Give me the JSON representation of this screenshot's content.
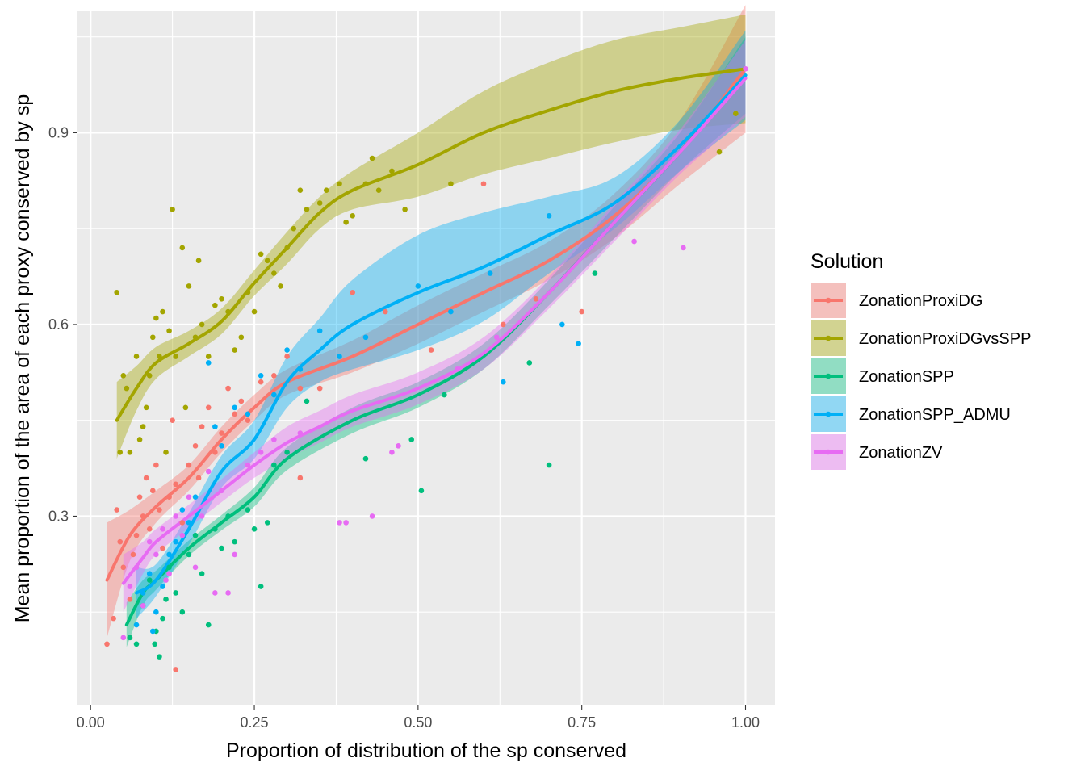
{
  "chart_data": {
    "type": "scatter",
    "title": "",
    "xlabel": "Proportion of distribution of the sp conserved",
    "ylabel": "Mean proportion of the area of each proxy conserved by sp",
    "xlim": [
      -0.02,
      1.045
    ],
    "ylim": [
      0.005,
      1.09
    ],
    "x_ticks": [
      0,
      0.25,
      0.5,
      0.75,
      1
    ],
    "x_tick_labels": [
      "0.00",
      "0.25",
      "0.50",
      "0.75",
      "1.00"
    ],
    "y_ticks": [
      0.3,
      0.6,
      0.9
    ],
    "y_tick_labels": [
      "0.3",
      "0.6",
      "0.9"
    ],
    "grid": true,
    "legend": {
      "title": "Solution",
      "position": "right"
    },
    "series": [
      {
        "name": "ZonationProxiDG",
        "color": "#F8766D",
        "smooth_x": [
          0.025,
          0.06,
          0.1,
          0.15,
          0.2,
          0.25,
          0.3,
          0.4,
          0.5,
          0.6,
          0.7,
          0.8,
          0.9,
          1.0
        ],
        "smooth_y": [
          0.2,
          0.27,
          0.315,
          0.36,
          0.42,
          0.47,
          0.51,
          0.55,
          0.6,
          0.65,
          0.7,
          0.77,
          0.87,
          1.0
        ],
        "band_half": [
          0.09,
          0.04,
          0.025,
          0.02,
          0.02,
          0.02,
          0.02,
          0.025,
          0.03,
          0.03,
          0.03,
          0.035,
          0.05,
          0.1
        ],
        "points": [
          [
            0.025,
            0.1
          ],
          [
            0.035,
            0.14
          ],
          [
            0.04,
            0.31
          ],
          [
            0.045,
            0.26
          ],
          [
            0.05,
            0.22
          ],
          [
            0.06,
            0.17
          ],
          [
            0.065,
            0.24
          ],
          [
            0.07,
            0.27
          ],
          [
            0.075,
            0.33
          ],
          [
            0.08,
            0.3
          ],
          [
            0.085,
            0.36
          ],
          [
            0.09,
            0.28
          ],
          [
            0.095,
            0.34
          ],
          [
            0.1,
            0.38
          ],
          [
            0.105,
            0.31
          ],
          [
            0.11,
            0.25
          ],
          [
            0.12,
            0.33
          ],
          [
            0.125,
            0.45
          ],
          [
            0.13,
            0.35
          ],
          [
            0.14,
            0.29
          ],
          [
            0.15,
            0.38
          ],
          [
            0.16,
            0.41
          ],
          [
            0.165,
            0.36
          ],
          [
            0.17,
            0.44
          ],
          [
            0.18,
            0.47
          ],
          [
            0.19,
            0.4
          ],
          [
            0.2,
            0.43
          ],
          [
            0.21,
            0.5
          ],
          [
            0.22,
            0.46
          ],
          [
            0.23,
            0.48
          ],
          [
            0.24,
            0.45
          ],
          [
            0.26,
            0.51
          ],
          [
            0.28,
            0.52
          ],
          [
            0.3,
            0.55
          ],
          [
            0.32,
            0.5
          ],
          [
            0.32,
            0.36
          ],
          [
            0.35,
            0.5
          ],
          [
            0.4,
            0.65
          ],
          [
            0.45,
            0.62
          ],
          [
            0.52,
            0.56
          ],
          [
            0.6,
            0.82
          ],
          [
            0.63,
            0.6
          ],
          [
            0.68,
            0.64
          ],
          [
            0.75,
            0.62
          ],
          [
            0.13,
            0.06
          ],
          [
            0.06,
            0.11
          ]
        ]
      },
      {
        "name": "ZonationProxiDGvsSPP",
        "color": "#A3A500",
        "smooth_x": [
          0.04,
          0.07,
          0.1,
          0.15,
          0.2,
          0.25,
          0.3,
          0.35,
          0.4,
          0.5,
          0.6,
          0.7,
          0.8,
          0.9,
          1.0
        ],
        "smooth_y": [
          0.45,
          0.5,
          0.54,
          0.57,
          0.605,
          0.665,
          0.72,
          0.775,
          0.81,
          0.85,
          0.9,
          0.935,
          0.965,
          0.985,
          1.0
        ],
        "band_half": [
          0.06,
          0.035,
          0.025,
          0.02,
          0.02,
          0.02,
          0.025,
          0.025,
          0.03,
          0.05,
          0.065,
          0.075,
          0.08,
          0.08,
          0.085
        ],
        "points": [
          [
            0.04,
            0.65
          ],
          [
            0.045,
            0.4
          ],
          [
            0.05,
            0.52
          ],
          [
            0.055,
            0.5
          ],
          [
            0.06,
            0.4
          ],
          [
            0.07,
            0.55
          ],
          [
            0.075,
            0.42
          ],
          [
            0.08,
            0.44
          ],
          [
            0.085,
            0.47
          ],
          [
            0.09,
            0.52
          ],
          [
            0.095,
            0.58
          ],
          [
            0.1,
            0.61
          ],
          [
            0.105,
            0.55
          ],
          [
            0.11,
            0.62
          ],
          [
            0.115,
            0.4
          ],
          [
            0.12,
            0.59
          ],
          [
            0.125,
            0.78
          ],
          [
            0.13,
            0.55
          ],
          [
            0.14,
            0.72
          ],
          [
            0.145,
            0.47
          ],
          [
            0.15,
            0.66
          ],
          [
            0.16,
            0.58
          ],
          [
            0.165,
            0.7
          ],
          [
            0.17,
            0.6
          ],
          [
            0.18,
            0.55
          ],
          [
            0.19,
            0.63
          ],
          [
            0.2,
            0.64
          ],
          [
            0.21,
            0.62
          ],
          [
            0.22,
            0.56
          ],
          [
            0.23,
            0.58
          ],
          [
            0.24,
            0.65
          ],
          [
            0.25,
            0.62
          ],
          [
            0.26,
            0.71
          ],
          [
            0.27,
            0.7
          ],
          [
            0.28,
            0.68
          ],
          [
            0.29,
            0.66
          ],
          [
            0.3,
            0.72
          ],
          [
            0.31,
            0.75
          ],
          [
            0.32,
            0.81
          ],
          [
            0.33,
            0.78
          ],
          [
            0.35,
            0.79
          ],
          [
            0.36,
            0.81
          ],
          [
            0.38,
            0.82
          ],
          [
            0.39,
            0.76
          ],
          [
            0.4,
            0.77
          ],
          [
            0.42,
            0.82
          ],
          [
            0.43,
            0.86
          ],
          [
            0.44,
            0.81
          ],
          [
            0.46,
            0.84
          ],
          [
            0.48,
            0.78
          ],
          [
            0.55,
            0.82
          ],
          [
            0.96,
            0.87
          ],
          [
            0.985,
            0.93
          ]
        ]
      },
      {
        "name": "ZonationSPP",
        "color": "#00BF7D",
        "smooth_x": [
          0.055,
          0.08,
          0.1,
          0.15,
          0.2,
          0.25,
          0.3,
          0.4,
          0.5,
          0.6,
          0.7,
          0.8,
          0.9,
          1.0
        ],
        "smooth_y": [
          0.13,
          0.18,
          0.2,
          0.25,
          0.29,
          0.33,
          0.39,
          0.45,
          0.49,
          0.55,
          0.65,
          0.76,
          0.87,
          0.99
        ],
        "band_half": [
          0.035,
          0.02,
          0.015,
          0.012,
          0.012,
          0.015,
          0.018,
          0.02,
          0.02,
          0.02,
          0.02,
          0.025,
          0.03,
          0.06
        ],
        "points": [
          [
            0.06,
            0.11
          ],
          [
            0.07,
            0.1
          ],
          [
            0.08,
            0.16
          ],
          [
            0.09,
            0.2
          ],
          [
            0.1,
            0.12
          ],
          [
            0.105,
            0.08
          ],
          [
            0.11,
            0.14
          ],
          [
            0.12,
            0.22
          ],
          [
            0.13,
            0.18
          ],
          [
            0.14,
            0.15
          ],
          [
            0.15,
            0.24
          ],
          [
            0.16,
            0.27
          ],
          [
            0.17,
            0.21
          ],
          [
            0.18,
            0.13
          ],
          [
            0.19,
            0.28
          ],
          [
            0.2,
            0.25
          ],
          [
            0.21,
            0.3
          ],
          [
            0.22,
            0.26
          ],
          [
            0.24,
            0.31
          ],
          [
            0.25,
            0.28
          ],
          [
            0.26,
            0.19
          ],
          [
            0.27,
            0.29
          ],
          [
            0.28,
            0.38
          ],
          [
            0.3,
            0.4
          ],
          [
            0.33,
            0.48
          ],
          [
            0.42,
            0.39
          ],
          [
            0.49,
            0.42
          ],
          [
            0.505,
            0.34
          ],
          [
            0.54,
            0.49
          ],
          [
            0.67,
            0.54
          ],
          [
            0.7,
            0.38
          ],
          [
            0.77,
            0.68
          ],
          [
            0.098,
            0.1
          ],
          [
            0.115,
            0.17
          ]
        ]
      },
      {
        "name": "ZonationSPP_ADMU",
        "color": "#00B0F6",
        "smooth_x": [
          0.07,
          0.1,
          0.15,
          0.2,
          0.25,
          0.3,
          0.35,
          0.4,
          0.5,
          0.6,
          0.7,
          0.8,
          0.9,
          1.0
        ],
        "smooth_y": [
          0.18,
          0.2,
          0.28,
          0.37,
          0.42,
          0.51,
          0.56,
          0.6,
          0.65,
          0.69,
          0.74,
          0.79,
          0.88,
          0.99
        ],
        "band_half": [
          0.04,
          0.025,
          0.025,
          0.025,
          0.03,
          0.04,
          0.05,
          0.07,
          0.09,
          0.085,
          0.06,
          0.04,
          0.04,
          0.07
        ],
        "points": [
          [
            0.07,
            0.13
          ],
          [
            0.08,
            0.18
          ],
          [
            0.09,
            0.21
          ],
          [
            0.1,
            0.15
          ],
          [
            0.11,
            0.19
          ],
          [
            0.12,
            0.24
          ],
          [
            0.13,
            0.26
          ],
          [
            0.14,
            0.31
          ],
          [
            0.15,
            0.29
          ],
          [
            0.16,
            0.33
          ],
          [
            0.18,
            0.54
          ],
          [
            0.19,
            0.44
          ],
          [
            0.2,
            0.41
          ],
          [
            0.22,
            0.47
          ],
          [
            0.24,
            0.46
          ],
          [
            0.26,
            0.52
          ],
          [
            0.28,
            0.49
          ],
          [
            0.3,
            0.56
          ],
          [
            0.32,
            0.53
          ],
          [
            0.35,
            0.59
          ],
          [
            0.38,
            0.55
          ],
          [
            0.42,
            0.58
          ],
          [
            0.5,
            0.66
          ],
          [
            0.55,
            0.62
          ],
          [
            0.61,
            0.68
          ],
          [
            0.63,
            0.51
          ],
          [
            0.7,
            0.77
          ],
          [
            0.72,
            0.6
          ],
          [
            0.745,
            0.57
          ],
          [
            0.095,
            0.12
          ]
        ]
      },
      {
        "name": "ZonationZV",
        "color": "#E76BF3",
        "smooth_x": [
          0.05,
          0.08,
          0.1,
          0.15,
          0.2,
          0.25,
          0.3,
          0.35,
          0.4,
          0.5,
          0.6,
          0.7,
          0.8,
          0.9,
          1.0
        ],
        "smooth_y": [
          0.195,
          0.235,
          0.26,
          0.3,
          0.34,
          0.38,
          0.415,
          0.44,
          0.465,
          0.5,
          0.555,
          0.65,
          0.76,
          0.87,
          0.985
        ],
        "band_half": [
          0.045,
          0.025,
          0.02,
          0.018,
          0.018,
          0.02,
          0.025,
          0.025,
          0.025,
          0.025,
          0.025,
          0.025,
          0.03,
          0.035,
          0.06
        ],
        "points": [
          [
            0.05,
            0.11
          ],
          [
            0.06,
            0.19
          ],
          [
            0.07,
            0.22
          ],
          [
            0.08,
            0.16
          ],
          [
            0.09,
            0.26
          ],
          [
            0.1,
            0.24
          ],
          [
            0.11,
            0.28
          ],
          [
            0.12,
            0.21
          ],
          [
            0.13,
            0.3
          ],
          [
            0.14,
            0.27
          ],
          [
            0.15,
            0.33
          ],
          [
            0.16,
            0.22
          ],
          [
            0.17,
            0.3
          ],
          [
            0.18,
            0.37
          ],
          [
            0.19,
            0.18
          ],
          [
            0.2,
            0.34
          ],
          [
            0.21,
            0.18
          ],
          [
            0.22,
            0.24
          ],
          [
            0.24,
            0.38
          ],
          [
            0.26,
            0.4
          ],
          [
            0.28,
            0.42
          ],
          [
            0.32,
            0.43
          ],
          [
            0.38,
            0.29
          ],
          [
            0.39,
            0.29
          ],
          [
            0.43,
            0.3
          ],
          [
            0.46,
            0.4
          ],
          [
            0.47,
            0.41
          ],
          [
            0.56,
            0.53
          ],
          [
            0.62,
            0.58
          ],
          [
            0.83,
            0.73
          ],
          [
            0.905,
            0.72
          ],
          [
            1.0,
            1.0
          ],
          [
            0.115,
            0.2
          ]
        ]
      }
    ]
  }
}
